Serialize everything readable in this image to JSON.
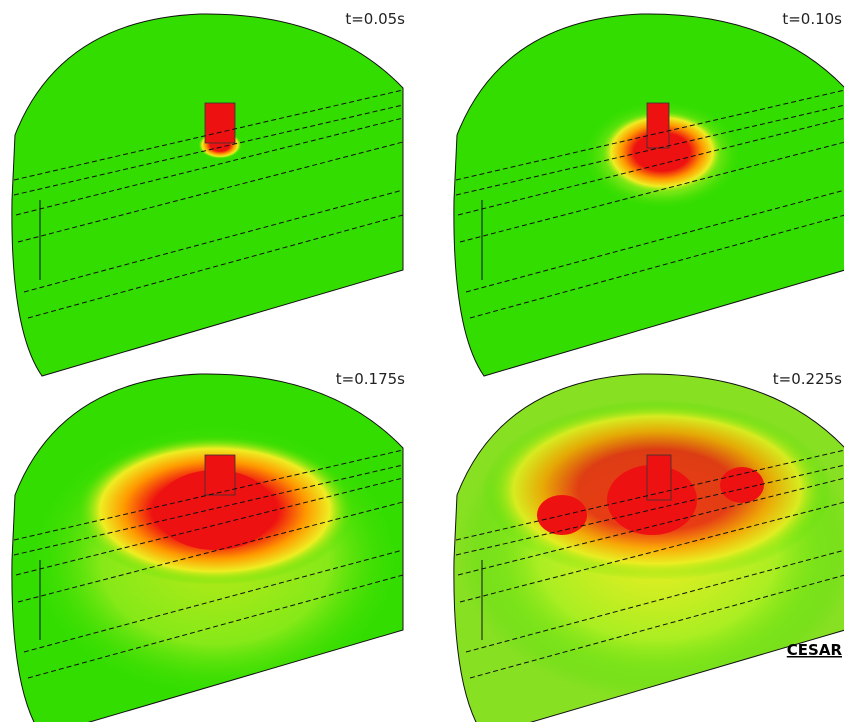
{
  "panels": [
    {
      "label": "t=0.05s"
    },
    {
      "label": "t=0.10s"
    },
    {
      "label": "t=0.175s"
    },
    {
      "label": "t=0.225s"
    }
  ],
  "logo": "CESAR"
}
